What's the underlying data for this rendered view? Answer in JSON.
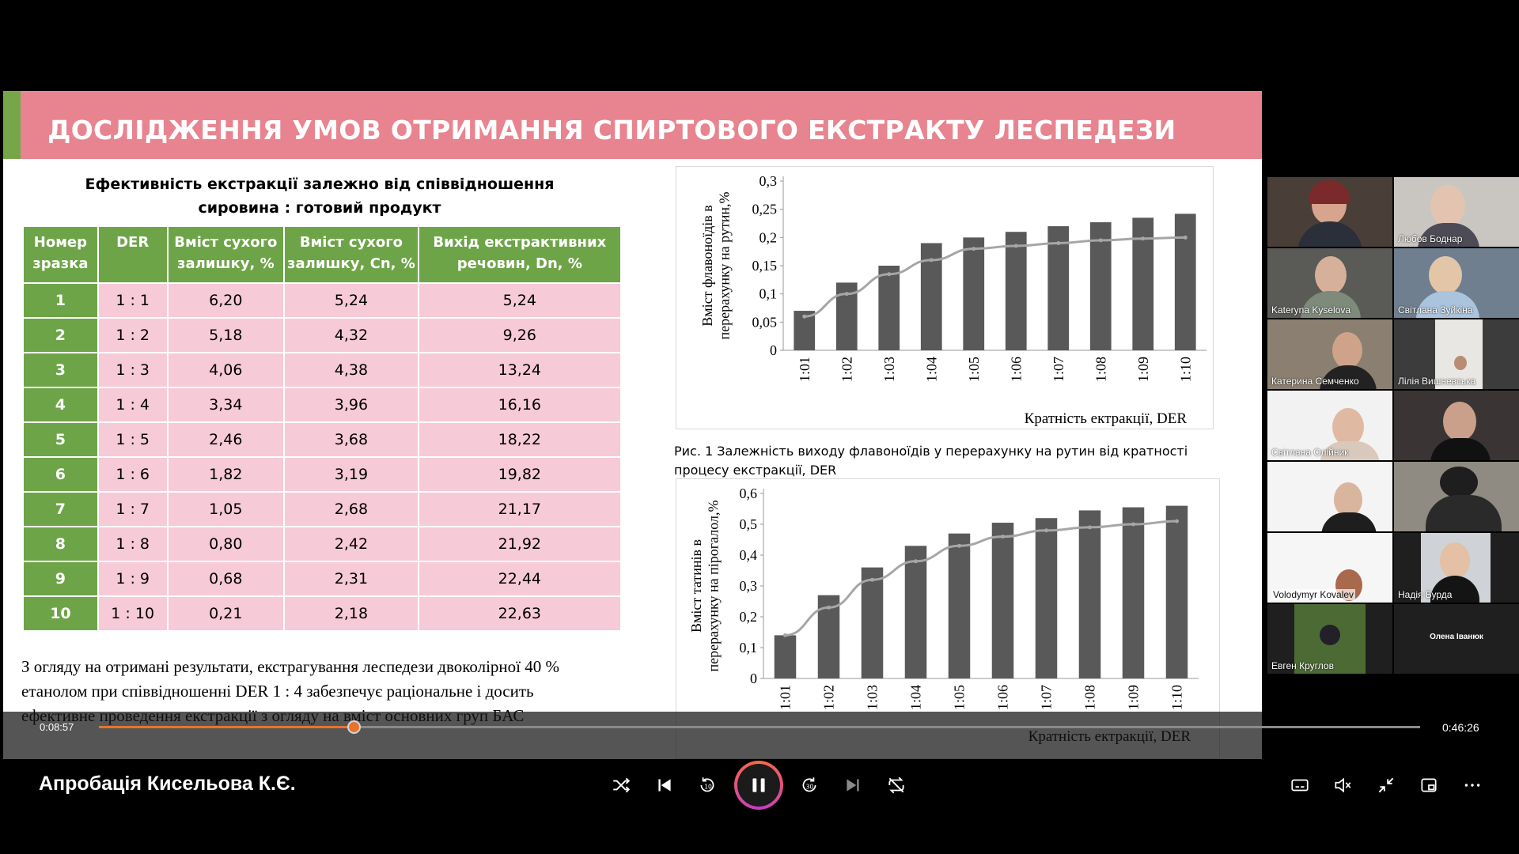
{
  "slide": {
    "title": "ДОСЛІДЖЕННЯ УМОВ ОТРИМАННЯ СПИРТОВОГО ЕКСТРАКТУ ЛЕСПЕДЕЗИ",
    "table_caption_line1": "Ефективність екстракції залежно від співвідношення",
    "table_caption_line2": "сировина : готовий продукт",
    "table": {
      "headers": [
        "Номер зразка",
        "DER",
        "Вміст сухого залишку, %",
        "Вміст сухого залишку, Cn, %",
        "Вихід екстрактивних речовин, Dn, %"
      ],
      "rows": [
        [
          "1",
          "1 : 1",
          "6,20",
          "5,24",
          "5,24"
        ],
        [
          "2",
          "1 : 2",
          "5,18",
          "4,32",
          "9,26"
        ],
        [
          "3",
          "1 : 3",
          "4,06",
          "4,38",
          "13,24"
        ],
        [
          "4",
          "1 : 4",
          "3,34",
          "3,96",
          "16,16"
        ],
        [
          "5",
          "1 : 5",
          "2,46",
          "3,68",
          "18,22"
        ],
        [
          "6",
          "1 : 6",
          "1,82",
          "3,19",
          "19,82"
        ],
        [
          "7",
          "1 : 7",
          "1,05",
          "2,68",
          "21,17"
        ],
        [
          "8",
          "1 : 8",
          "0,80",
          "2,42",
          "21,92"
        ],
        [
          "9",
          "1 : 9",
          "0,68",
          "2,31",
          "22,44"
        ],
        [
          "10",
          "1 : 10",
          "0,21",
          "2,18",
          "22,63"
        ]
      ]
    },
    "conclusion_lines": [
      "З огляду на отримані результати, екстрагування леспедези двоколірної 40 %",
      "етанолом при співвідношенні DER 1 : 4 забезпечує раціональне і досить",
      "ефективне проведення екстракції з огляду на вміст основних груп БАС"
    ],
    "fig1_caption": "Рис. 1 Залежність виходу флавоноїдів у перерахунку на рутин від кратності процесу екстракції, DER"
  },
  "chart_data": [
    {
      "type": "bar",
      "categories": [
        "1:01",
        "1:02",
        "1:03",
        "1:04",
        "1:05",
        "1:06",
        "1:07",
        "1:08",
        "1:09",
        "1:10"
      ],
      "values": [
        0.07,
        0.12,
        0.15,
        0.19,
        0.2,
        0.21,
        0.22,
        0.227,
        0.235,
        0.242
      ],
      "trend": [
        0.06,
        0.1,
        0.135,
        0.16,
        0.18,
        0.185,
        0.19,
        0.195,
        0.198,
        0.2
      ],
      "ylabel": "Вміст флавоноїдів в перерахунку на рутин,%",
      "xlabel": "Кратність ектракції, DER",
      "yticks": [
        "0",
        "0,05",
        "0,1",
        "0,15",
        "0,2",
        "0,25",
        "0,3"
      ],
      "ylim": [
        0,
        0.3
      ],
      "bar_color": "#595959",
      "trend_color": "#a6a6a6"
    },
    {
      "type": "bar",
      "categories": [
        "1:01",
        "1:02",
        "1:03",
        "1:04",
        "1:05",
        "1:06",
        "1:07",
        "1:08",
        "1:09",
        "1:10"
      ],
      "values": [
        0.14,
        0.27,
        0.36,
        0.43,
        0.47,
        0.505,
        0.52,
        0.545,
        0.555,
        0.56
      ],
      "trend": [
        0.14,
        0.23,
        0.32,
        0.38,
        0.43,
        0.46,
        0.48,
        0.49,
        0.5,
        0.51
      ],
      "ylabel": "Вміст татинів в перерахунку на пірогалол,%",
      "xlabel": "Кратність ектракції, DER",
      "yticks": [
        "0",
        "0,1",
        "0,2",
        "0,3",
        "0,4",
        "0,5",
        "0,6"
      ],
      "ylim": [
        0,
        0.6
      ],
      "bar_color": "#595959",
      "trend_color": "#a6a6a6"
    }
  ],
  "participants": [
    {
      "name": ""
    },
    {
      "name": "Любов Боднар"
    },
    {
      "name": "Kateryna Kyselova"
    },
    {
      "name": "Світлана Зуйкіна"
    },
    {
      "name": "Катерина Семченко"
    },
    {
      "name": "Лілія Вишневська"
    },
    {
      "name": "Світлана Олійник"
    },
    {
      "name": ""
    },
    {
      "name": ""
    },
    {
      "name": ""
    },
    {
      "name": "Volodymyr Kovalev"
    },
    {
      "name": "Надія Бурда"
    },
    {
      "name": "Евген Круглов"
    },
    {
      "name": "Олена Іванюк"
    }
  ],
  "player": {
    "video_title": "Апробація Кисельова К.Є.",
    "time_current": "0:08:57",
    "time_total": "0:46:26",
    "progress": 0.193,
    "accent": "#e8732e"
  }
}
